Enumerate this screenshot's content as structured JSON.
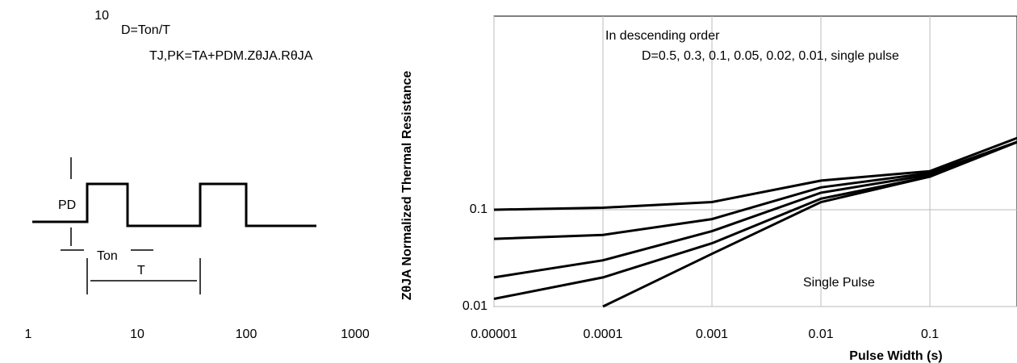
{
  "chart_data": [
    {
      "type": "line",
      "xscale": "log",
      "yscale": "log",
      "xlim": [
        1,
        1000
      ],
      "xticks": [
        1,
        10,
        100,
        1000
      ],
      "ylim": [
        0.01,
        10
      ],
      "yticks": [
        10
      ],
      "grid": true,
      "annotations": [
        "D=Ton/T",
        "TJ,PK=TA+PDM.ZθJA.RθJA",
        "PD",
        "Ton",
        "T"
      ]
    },
    {
      "type": "line",
      "xscale": "log",
      "yscale": "log",
      "xlim": [
        1e-05,
        0.63
      ],
      "xticks": [
        1e-05,
        0.0001,
        0.001,
        0.01,
        0.1
      ],
      "ylim": [
        0.01,
        10
      ],
      "yticks": [
        0.01,
        0.1
      ],
      "grid": true,
      "x_label": "Pulse Width (s)",
      "y_label": "ZθJA Normalized Thermal Resistance",
      "annotations": [
        "In descending order",
        "D=0.5, 0.3, 0.1, 0.05, 0.02, 0.01, single pulse",
        "Single Pulse"
      ],
      "x": [
        1e-05,
        0.0001,
        0.001,
        0.01,
        0.1,
        0.63
      ],
      "series": [
        {
          "color": "#000000",
          "values": [
            0.1,
            0.105,
            0.12,
            0.2,
            0.25,
            0.55
          ]
        },
        {
          "color": "#000000",
          "values": [
            0.05,
            0.055,
            0.08,
            0.17,
            0.24,
            0.5
          ]
        },
        {
          "color": "#000000",
          "values": [
            0.02,
            0.03,
            0.06,
            0.15,
            0.23,
            0.5
          ]
        },
        {
          "color": "#000000",
          "values": [
            0.012,
            0.02,
            0.045,
            0.13,
            0.22,
            0.5
          ]
        },
        {
          "color": "#000000",
          "values": [
            null,
            0.01,
            0.035,
            0.12,
            0.22,
            0.5
          ]
        }
      ]
    }
  ]
}
